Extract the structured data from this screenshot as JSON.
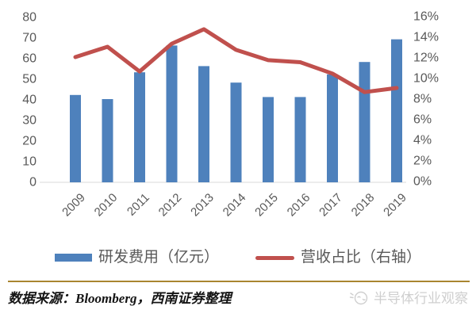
{
  "chart_data": {
    "type": "combo-bar-line",
    "categories": [
      "2009",
      "2010",
      "2011",
      "2012",
      "2013",
      "2014",
      "2015",
      "2016",
      "2017",
      "2018",
      "2019"
    ],
    "series": [
      {
        "name": "研发费用（亿元）",
        "type": "bar",
        "axis": "left",
        "color": "#4E81BC",
        "values": [
          42,
          40,
          53,
          66,
          56,
          48,
          41,
          41,
          52,
          58,
          69
        ]
      },
      {
        "name": "营收占比（右轴）",
        "type": "line",
        "axis": "right",
        "color": "#C0504D",
        "values": [
          12.0,
          13.0,
          10.6,
          13.3,
          14.7,
          12.7,
          11.7,
          11.5,
          10.4,
          8.6,
          9.0
        ]
      }
    ],
    "left_axis": {
      "min": 0,
      "max": 80,
      "step": 10
    },
    "right_axis": {
      "min": 0,
      "max": 16,
      "step": 2,
      "suffix": "%"
    },
    "grid": false,
    "legend_position": "bottom"
  },
  "legend": {
    "bar_label": "研发费用（亿元）",
    "line_label": "营收占比（右轴）"
  },
  "footer": {
    "source_text": "数据来源：Bloomberg，西南证券整理",
    "watermark_text": "半导体行业观察"
  },
  "colors": {
    "bar": "#4E81BC",
    "line": "#C0504D",
    "axis_text": "#595959",
    "baseline": "#D9D9D9",
    "divider": "#A98530",
    "watermark": "#CFCFCF"
  }
}
